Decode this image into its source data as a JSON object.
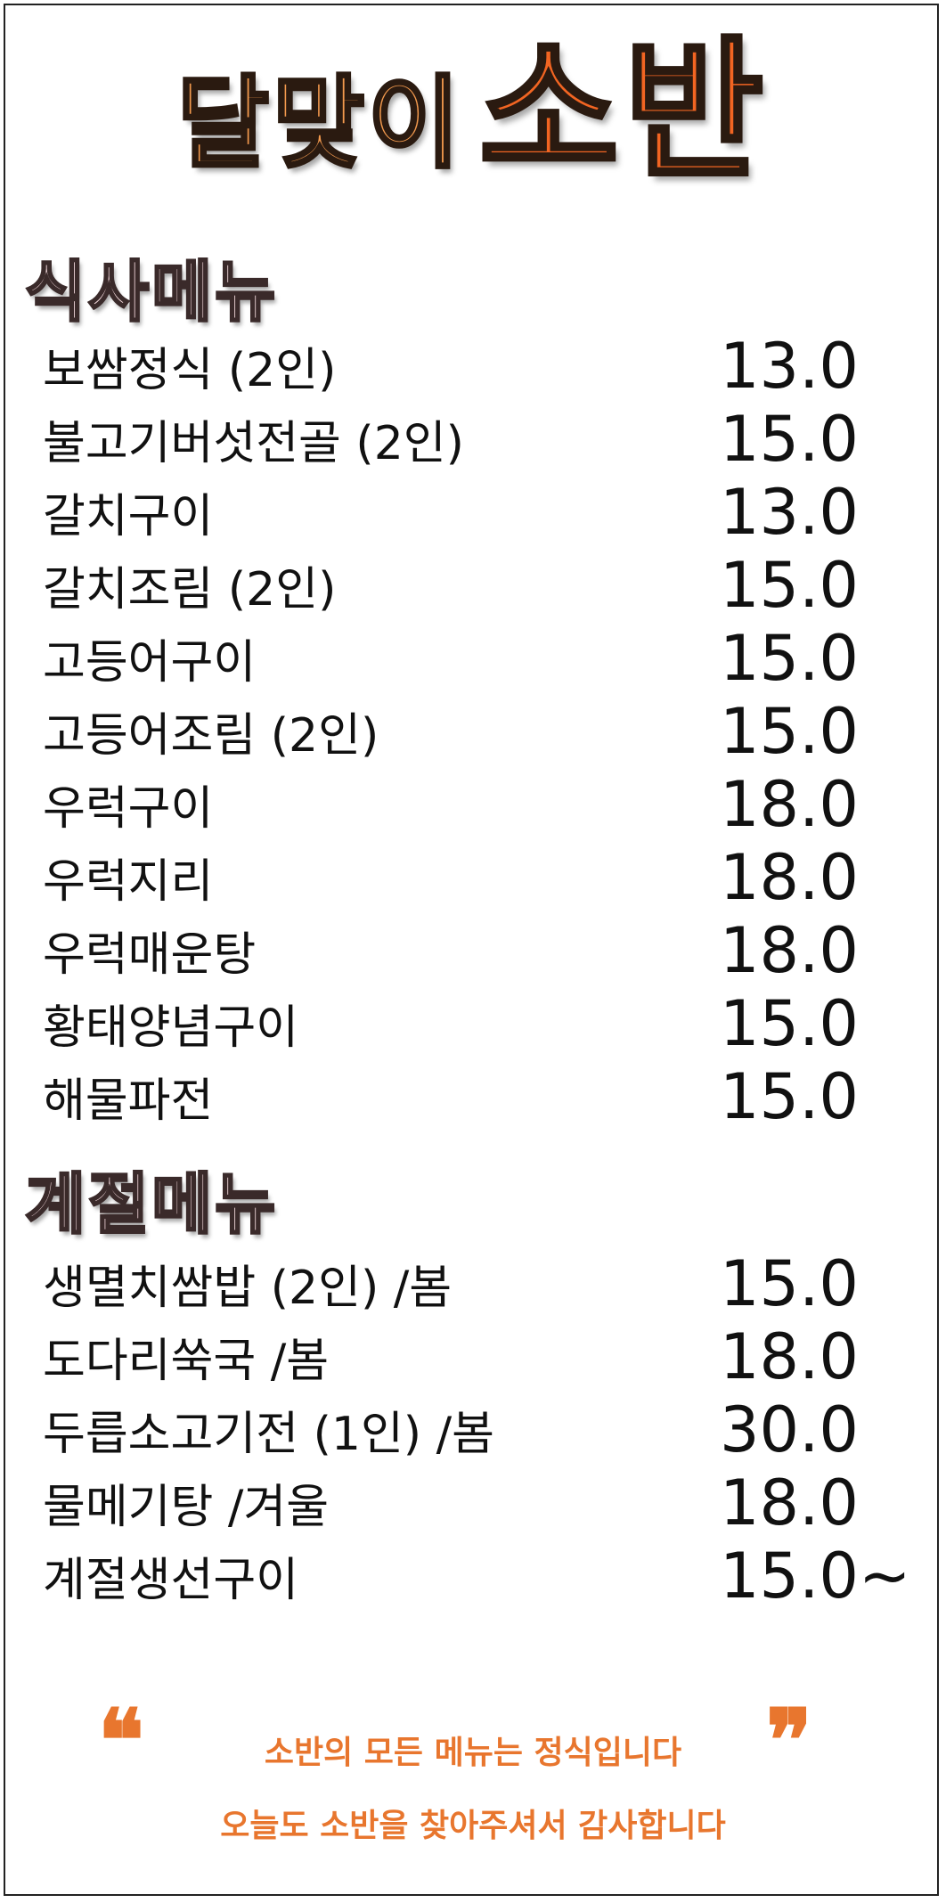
{
  "title": {
    "part1": "달맞이",
    "part2": "소반"
  },
  "sections": {
    "meal": {
      "header": "식사메뉴",
      "items": [
        {
          "name": "보쌈정식 (2인)",
          "price": "13.0"
        },
        {
          "name": "불고기버섯전골 (2인)",
          "price": "15.0"
        },
        {
          "name": "갈치구이",
          "price": "13.0"
        },
        {
          "name": "갈치조림 (2인)",
          "price": "15.0"
        },
        {
          "name": "고등어구이",
          "price": "15.0"
        },
        {
          "name": "고등어조림 (2인)",
          "price": "15.0"
        },
        {
          "name": "우럭구이",
          "price": "18.0"
        },
        {
          "name": "우럭지리",
          "price": "18.0"
        },
        {
          "name": "우럭매운탕",
          "price": "18.0"
        },
        {
          "name": "황태양념구이",
          "price": "15.0"
        },
        {
          "name": "해물파전",
          "price": "15.0"
        }
      ]
    },
    "seasonal": {
      "header": "계절메뉴",
      "items": [
        {
          "name": "생멸치쌈밥 (2인) /봄",
          "price": "15.0"
        },
        {
          "name": "도다리쑥국 /봄",
          "price": "18.0"
        },
        {
          "name": "두릅소고기전 (1인) /봄",
          "price": "30.0"
        },
        {
          "name": "물메기탕 /겨울",
          "price": "18.0"
        },
        {
          "name": "계절생선구이",
          "price": "15.0~"
        }
      ]
    }
  },
  "footer": {
    "open_quote": "❝",
    "close_quote": "❞",
    "line1": "소반의 모든 메뉴는 정식입니다",
    "line2": "오늘도 소반을 찾아주셔서 감사합니다"
  },
  "colors": {
    "title_light_orange": "#F39A4E",
    "title_orange": "#F26522",
    "header_pink": "#fde3e6",
    "footer_orange": "#E8762E"
  }
}
